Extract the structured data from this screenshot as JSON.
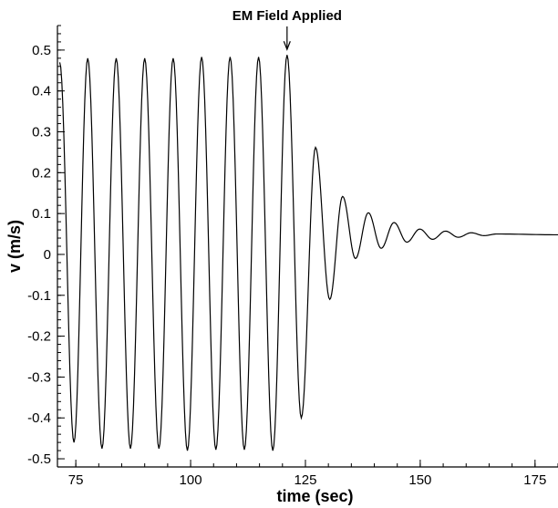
{
  "chart_data": {
    "type": "line",
    "title": "",
    "xlabel": "time (sec)",
    "ylabel": "v (m/s)",
    "xlim": [
      71,
      180
    ],
    "ylim": [
      -0.52,
      0.56
    ],
    "grid": false,
    "legend": "none",
    "x_ticks": [
      75,
      100,
      125,
      150,
      175
    ],
    "x_tick_labels": [
      "75",
      "100",
      "125",
      "150",
      "175"
    ],
    "y_ticks": [
      0.5,
      0.4,
      0.3,
      0.2,
      0.1,
      0,
      -0.1,
      -0.2,
      -0.3,
      -0.4,
      -0.5
    ],
    "y_tick_labels": [
      "0.5",
      "0.4",
      "0.3",
      "0.2",
      "0.1",
      "0",
      "-0.1",
      "-0.2",
      "-0.3",
      "-0.4",
      "-0.5"
    ],
    "series": [
      {
        "color": "#000000",
        "x": [
          71.5,
          74.6,
          77.6,
          80.7,
          83.8,
          86.9,
          90.0,
          93.1,
          96.2,
          99.3,
          102.4,
          105.5,
          108.6,
          111.7,
          114.8,
          117.9,
          121.0,
          124.1,
          127.2,
          130.3,
          133.1,
          135.9,
          138.7,
          141.5,
          144.3,
          147.1,
          149.9,
          152.7,
          155.5,
          158.3,
          161.1,
          163.9,
          166.7,
          180.0
        ],
        "y": [
          0.47,
          -0.46,
          0.48,
          -0.475,
          0.48,
          -0.475,
          0.48,
          -0.475,
          0.48,
          -0.48,
          0.483,
          -0.478,
          0.483,
          -0.478,
          0.483,
          -0.48,
          0.488,
          -0.4,
          0.262,
          -0.11,
          0.142,
          -0.01,
          0.102,
          0.015,
          0.078,
          0.03,
          0.062,
          0.037,
          0.057,
          0.042,
          0.053,
          0.046,
          0.05,
          0.048
        ]
      }
    ],
    "annotations": [
      {
        "text": "EM Field Applied",
        "x": 121.0,
        "y": 0.488
      }
    ]
  }
}
